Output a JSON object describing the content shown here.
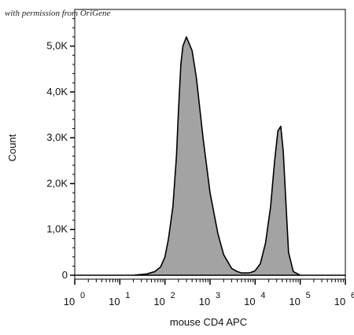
{
  "watermark": "with permission from OriGene",
  "chart_data": {
    "type": "area",
    "title": "",
    "xlabel": "mouse CD4 APC",
    "ylabel": "Count",
    "xscale": "log",
    "xlim": [
      1,
      1000000
    ],
    "ylim": [
      0,
      5800
    ],
    "yticks": [
      0,
      1000,
      2000,
      3000,
      4000,
      5000
    ],
    "ytick_labels": [
      "0",
      "1,0K",
      "2,0K",
      "3,0K",
      "4,0K",
      "5,0K"
    ],
    "xticks": [
      1,
      10,
      100,
      1000,
      10000,
      100000,
      1000000
    ],
    "xtick_labels": [
      {
        "base": "10",
        "exp": "0"
      },
      {
        "base": "10",
        "exp": "1"
      },
      {
        "base": "10",
        "exp": "2"
      },
      {
        "base": "10",
        "exp": "3"
      },
      {
        "base": "10",
        "exp": "4"
      },
      {
        "base": "10",
        "exp": "5"
      },
      {
        "base": "10",
        "exp": "6"
      }
    ],
    "fill_color": "#a3a3a3",
    "line_color": "#000000",
    "series": [
      {
        "x": [
          1,
          20,
          40,
          60,
          80,
          100,
          120,
          150,
          180,
          200,
          225,
          250,
          300,
          400,
          500,
          700,
          1000,
          1500,
          2000,
          3000,
          4000,
          5000,
          6000,
          7000,
          8000,
          10000,
          13000,
          17000,
          22000,
          27000,
          32000,
          37000,
          42000,
          48000,
          55000,
          70000,
          100000,
          1000000
        ],
        "y": [
          0,
          0,
          30,
          80,
          180,
          400,
          800,
          1500,
          2600,
          3600,
          4600,
          5000,
          5200,
          4900,
          4300,
          3000,
          1800,
          900,
          450,
          150,
          80,
          50,
          50,
          50,
          60,
          100,
          250,
          700,
          1500,
          2500,
          3150,
          3250,
          2700,
          1600,
          500,
          80,
          0,
          0
        ]
      }
    ]
  }
}
